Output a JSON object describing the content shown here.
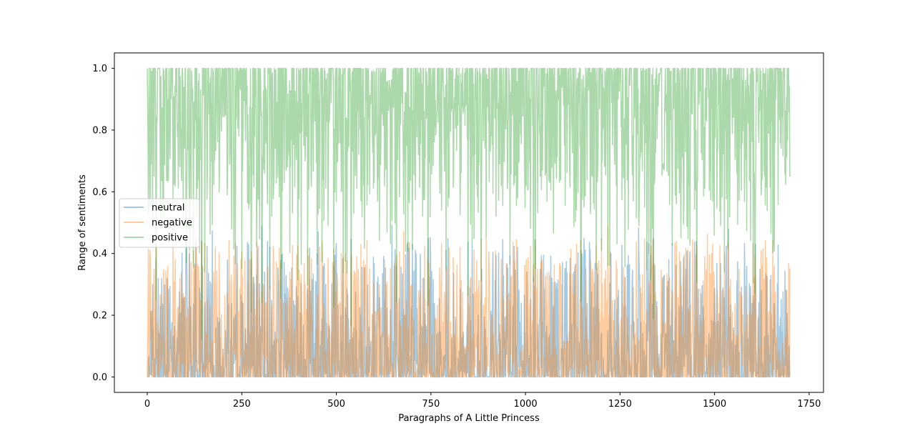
{
  "chart_data": {
    "type": "line",
    "title": "",
    "xlabel": "Paragraphs of A Little Princess",
    "ylabel": "Range of sentiments",
    "xlim": [
      -87,
      1788
    ],
    "ylim": [
      -0.05,
      1.05
    ],
    "xticks": [
      0,
      250,
      500,
      750,
      1000,
      1250,
      1500,
      1750
    ],
    "yticks": [
      0.0,
      0.2,
      0.4,
      0.6,
      0.8,
      1.0
    ],
    "xtick_labels": [
      "0",
      "250",
      "500",
      "750",
      "1000",
      "1250",
      "1500",
      "1750"
    ],
    "ytick_labels": [
      "0.0",
      "0.2",
      "0.4",
      "0.6",
      "0.8",
      "1.0"
    ],
    "n_points": 1700,
    "grid": false,
    "legend": "center-left",
    "series": [
      {
        "name": "neutral",
        "color": "#1f77b4",
        "opacity": 0.4,
        "typical_range": [
          0.0,
          0.3
        ],
        "peak_max": 0.5
      },
      {
        "name": "negative",
        "color": "#ff7f0e",
        "opacity": 0.4,
        "typical_range": [
          0.0,
          0.3
        ],
        "peak_max": 0.5
      },
      {
        "name": "positive",
        "color": "#2ca02c",
        "opacity": 0.4,
        "typical_range": [
          0.6,
          1.0
        ],
        "peak_min": 0.0
      }
    ]
  }
}
